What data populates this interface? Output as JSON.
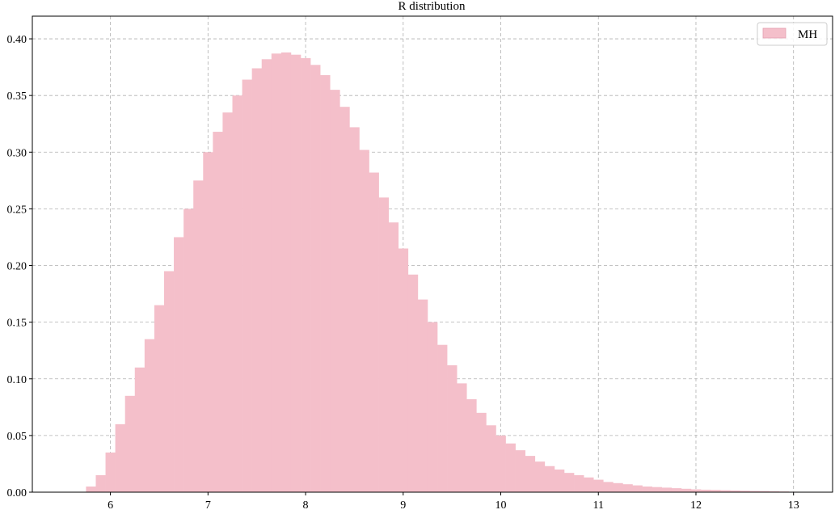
{
  "chart_data": {
    "type": "bar",
    "title": "R distribution",
    "xlabel": "",
    "ylabel": "",
    "xlim": [
      5.2,
      13.4
    ],
    "ylim": [
      0,
      0.42
    ],
    "xticks": [
      6,
      7,
      8,
      9,
      10,
      11,
      12,
      13
    ],
    "xtick_labels": [
      "6",
      "7",
      "8",
      "9",
      "10",
      "11",
      "12",
      "13"
    ],
    "yticks": [
      0.0,
      0.05,
      0.1,
      0.15,
      0.2,
      0.25,
      0.3,
      0.35,
      0.4
    ],
    "ytick_labels": [
      "0.00",
      "0.05",
      "0.10",
      "0.15",
      "0.20",
      "0.25",
      "0.30",
      "0.35",
      "0.40"
    ],
    "grid": true,
    "legend_position": "top-right",
    "series": [
      {
        "name": "MH",
        "color": "#f4bfca",
        "bin_width": 0.1,
        "x": [
          5.8,
          5.9,
          6.0,
          6.1,
          6.2,
          6.3,
          6.4,
          6.5,
          6.6,
          6.7,
          6.8,
          6.9,
          7.0,
          7.1,
          7.2,
          7.3,
          7.4,
          7.5,
          7.6,
          7.7,
          7.8,
          7.9,
          8.0,
          8.1,
          8.2,
          8.3,
          8.4,
          8.5,
          8.6,
          8.7,
          8.8,
          8.9,
          9.0,
          9.1,
          9.2,
          9.3,
          9.4,
          9.5,
          9.6,
          9.7,
          9.8,
          9.9,
          10.0,
          10.1,
          10.2,
          10.3,
          10.4,
          10.5,
          10.6,
          10.7,
          10.8,
          10.9,
          11.0,
          11.1,
          11.2,
          11.3,
          11.4,
          11.5,
          11.6,
          11.7,
          11.8,
          11.9,
          12.0,
          12.1,
          12.2,
          12.3,
          12.4,
          12.5,
          12.6,
          12.7,
          12.8,
          12.9,
          13.0
        ],
        "values": [
          0.005,
          0.015,
          0.035,
          0.06,
          0.085,
          0.11,
          0.135,
          0.165,
          0.195,
          0.225,
          0.25,
          0.275,
          0.3,
          0.318,
          0.335,
          0.35,
          0.364,
          0.374,
          0.382,
          0.387,
          0.388,
          0.386,
          0.383,
          0.377,
          0.368,
          0.355,
          0.34,
          0.322,
          0.302,
          0.282,
          0.26,
          0.238,
          0.215,
          0.192,
          0.17,
          0.15,
          0.13,
          0.112,
          0.096,
          0.082,
          0.07,
          0.059,
          0.05,
          0.043,
          0.037,
          0.032,
          0.027,
          0.023,
          0.02,
          0.017,
          0.015,
          0.013,
          0.011,
          0.009,
          0.008,
          0.007,
          0.006,
          0.005,
          0.0045,
          0.004,
          0.0035,
          0.003,
          0.0025,
          0.0022,
          0.002,
          0.0017,
          0.0015,
          0.0013,
          0.0011,
          0.001,
          0.0008,
          0.0006,
          0.0004
        ]
      }
    ]
  }
}
